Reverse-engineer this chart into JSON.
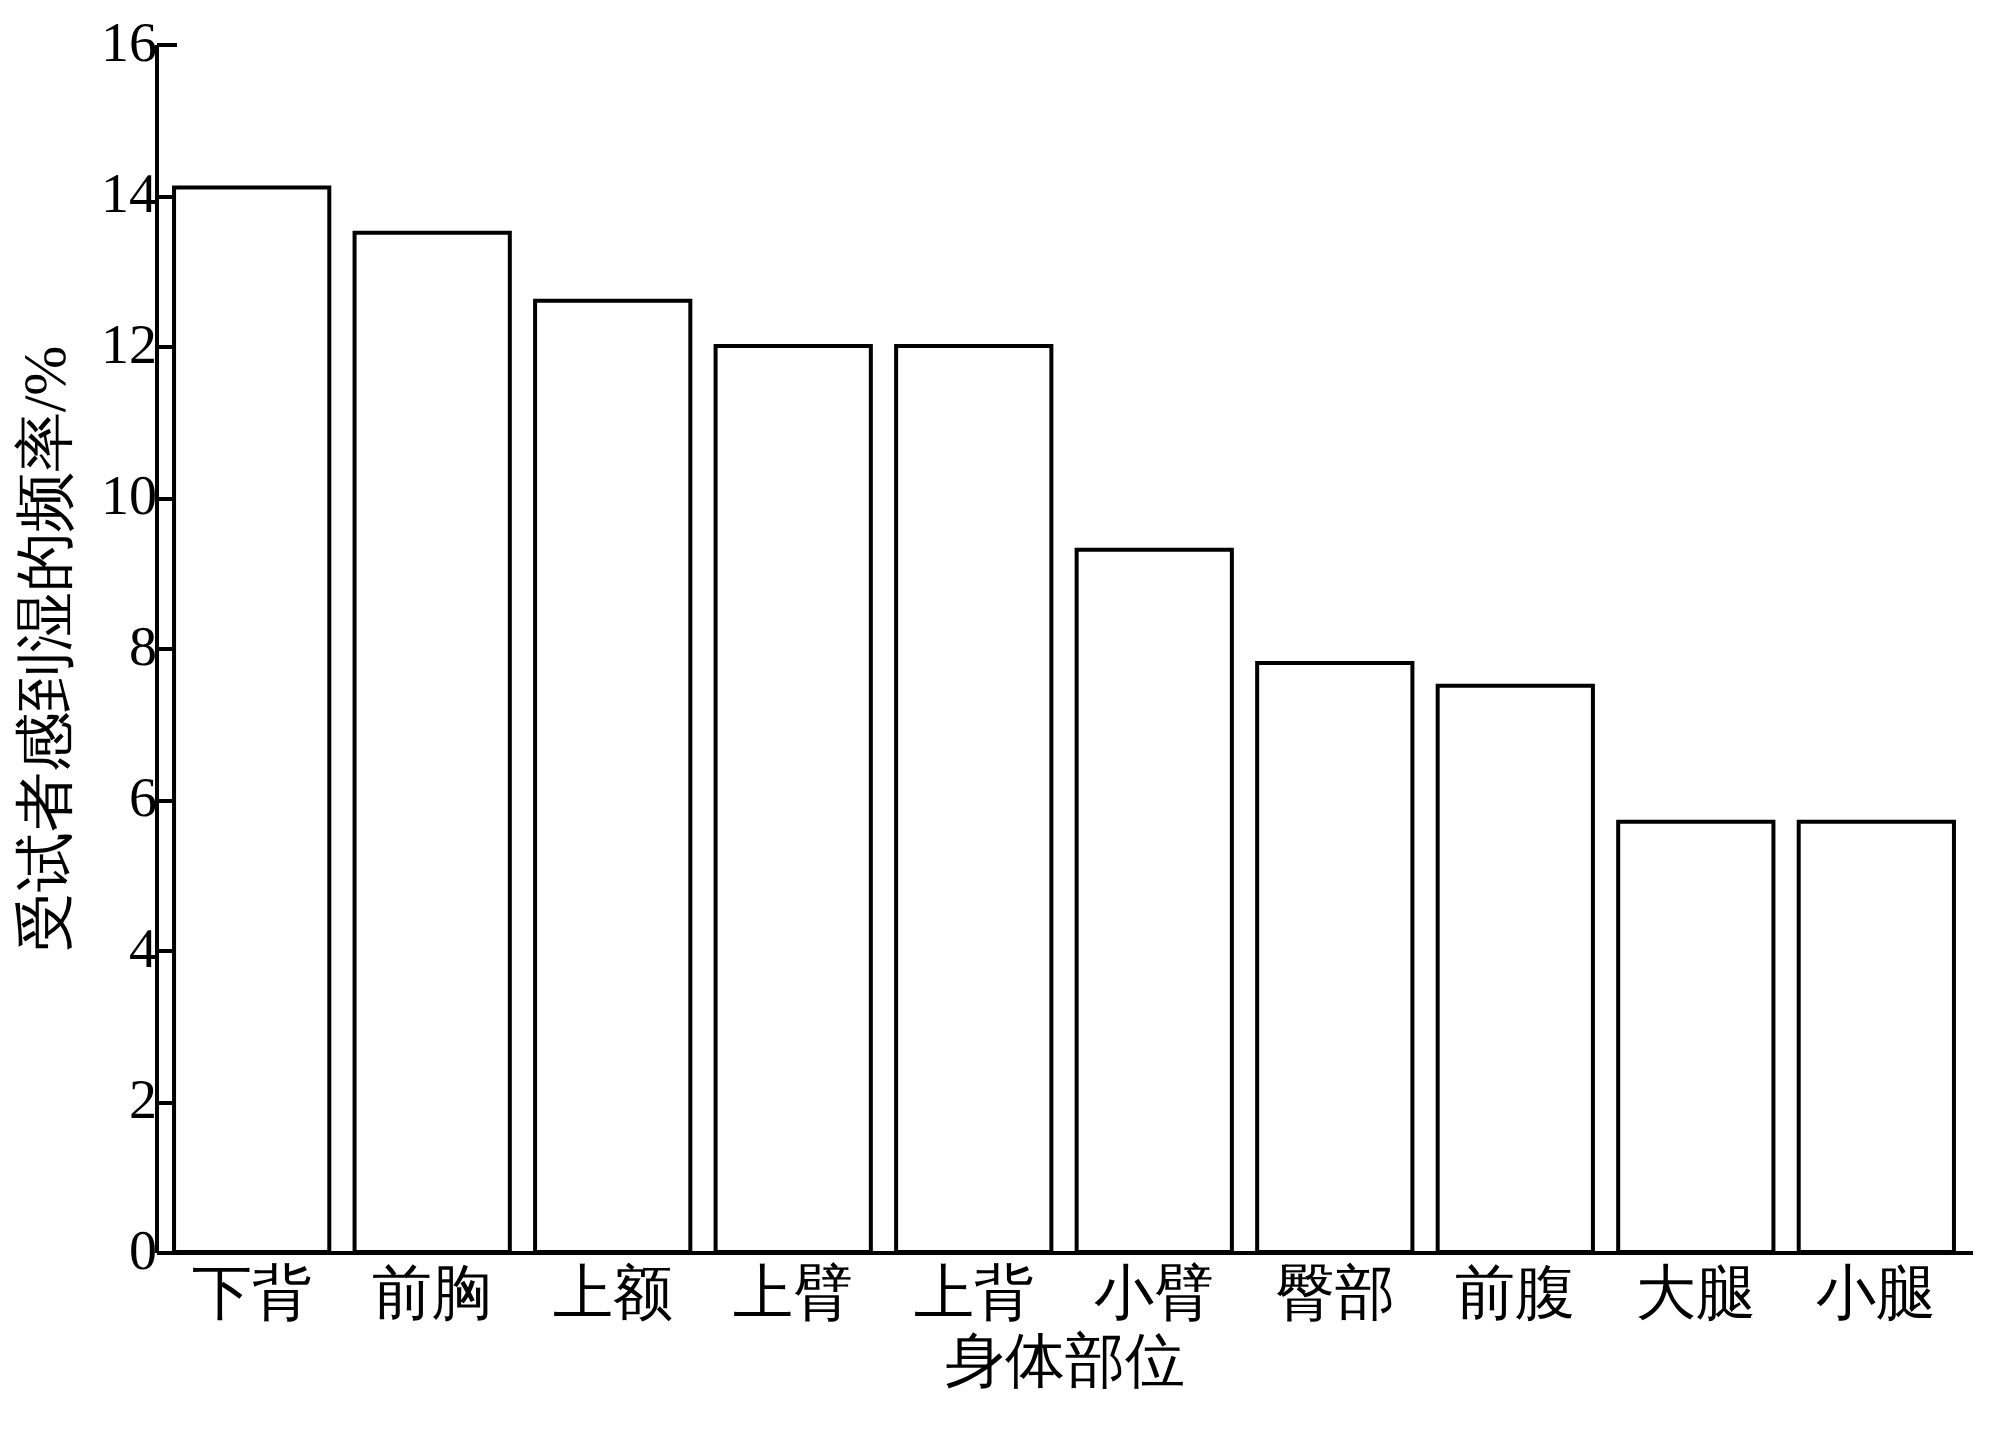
{
  "chart_data": {
    "type": "bar",
    "xlabel": "身体部位",
    "ylabel": "受试者感到湿的频率/%",
    "categories": [
      "下背",
      "前胸",
      "上额",
      "上臂",
      "上背",
      "小臂",
      "臀部",
      "前腹",
      "大腿",
      "小腿"
    ],
    "values": [
      14.1,
      13.5,
      12.6,
      12.0,
      12.0,
      9.3,
      7.8,
      7.5,
      5.7,
      5.7
    ],
    "color": "#ffffff",
    "ylim": [
      0,
      16
    ],
    "yticks": [
      0,
      2,
      4,
      6,
      8,
      10,
      12,
      14,
      16
    ],
    "grid": false
  }
}
